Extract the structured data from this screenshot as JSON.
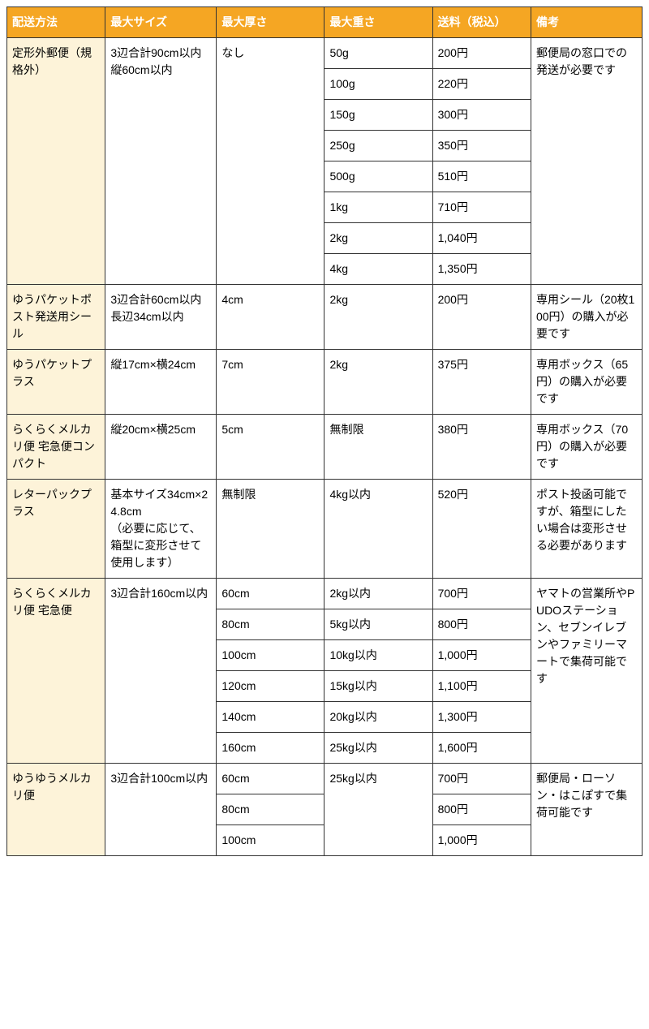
{
  "headers": [
    "配送方法",
    "最大サイズ",
    "最大厚さ",
    "最大重さ",
    "送料（税込）",
    "備考"
  ],
  "groups": [
    {
      "method": "定形外郵便（規格外）",
      "size": "3辺合計90cm以内\n縦60cm以内",
      "thick": "なし",
      "note": "郵便局の窓口での発送が必要です",
      "rows": [
        {
          "weight": "50g",
          "price": "200円"
        },
        {
          "weight": "100g",
          "price": "220円"
        },
        {
          "weight": "150g",
          "price": "300円"
        },
        {
          "weight": "250g",
          "price": "350円"
        },
        {
          "weight": "500g",
          "price": "510円"
        },
        {
          "weight": "1kg",
          "price": "710円"
        },
        {
          "weight": "2kg",
          "price": "1,040円"
        },
        {
          "weight": "4kg",
          "price": "1,350円"
        }
      ]
    },
    {
      "method": "ゆうパケットポスト発送用シール",
      "size": "3辺合計60cm以内\n長辺34cm以内",
      "thick": "4cm",
      "note": "専用シール（20枚100円）の購入が必要です",
      "rows": [
        {
          "weight": "2kg",
          "price": "200円"
        }
      ]
    },
    {
      "method": "ゆうパケットプラス",
      "size": "縦17cm×横24cm",
      "thick": "7cm",
      "note": "専用ボックス（65円）の購入が必要です",
      "rows": [
        {
          "weight": "2kg",
          "price": "375円"
        }
      ]
    },
    {
      "method": "らくらくメルカリ便 宅急便コンパクト",
      "size": "縦20cm×横25cm",
      "thick": "5cm",
      "note": "専用ボックス（70円）の購入が必要です",
      "rows": [
        {
          "weight": "無制限",
          "price": "380円"
        }
      ]
    },
    {
      "method": "レターパックプラス",
      "size": "基本サイズ34cm×24.8cm\n（必要に応じて、箱型に変形させて使用します）",
      "thick": "無制限",
      "note": "ポスト投函可能ですが、箱型にしたい場合は変形させる必要があります",
      "rows": [
        {
          "weight": "4kg以内",
          "price": "520円"
        }
      ]
    },
    {
      "method": "らくらくメルカリ便 宅急便",
      "size": "3辺合計160cm以内",
      "thickPerRow": true,
      "note": "ヤマトの営業所やPUDOステーション、セブンイレブンやファミリーマートで集荷可能です",
      "rows": [
        {
          "thick": "60cm",
          "weight": "2kg以内",
          "price": "700円"
        },
        {
          "thick": "80cm",
          "weight": "5kg以内",
          "price": "800円"
        },
        {
          "thick": "100cm",
          "weight": "10kg以内",
          "price": "1,000円"
        },
        {
          "thick": "120cm",
          "weight": "15kg以内",
          "price": "1,100円"
        },
        {
          "thick": "140cm",
          "weight": "20kg以内",
          "price": "1,300円"
        },
        {
          "thick": "160cm",
          "weight": "25kg以内",
          "price": "1,600円"
        }
      ]
    },
    {
      "method": "ゆうゆうメルカリ便",
      "size": "3辺合計100cm以内",
      "thickPerRow": true,
      "weightMerged": "25kg以内",
      "note": "郵便局・ローソン・はこぽすで集荷可能です",
      "rows": [
        {
          "thick": "60cm",
          "price": "700円"
        },
        {
          "thick": "80cm",
          "price": "800円"
        },
        {
          "thick": "100cm",
          "price": "1,000円"
        }
      ]
    }
  ]
}
